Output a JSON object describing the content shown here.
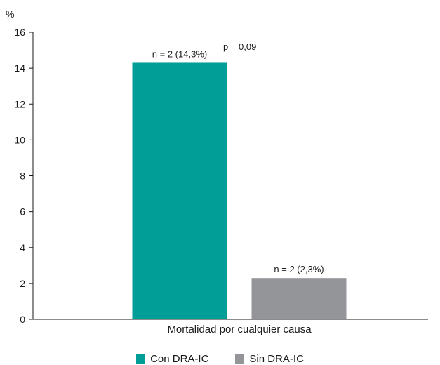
{
  "chart_data": {
    "type": "bar",
    "categories": [
      "Mortalidad por cualquier causa"
    ],
    "series": [
      {
        "name": "Con DRA-IC",
        "values": [
          14.3
        ],
        "color": "#009e96",
        "label": "n = 2 (14,3%)"
      },
      {
        "name": "Sin DRA-IC",
        "values": [
          2.3
        ],
        "color": "#939598",
        "label": "n = 2 (2,3%)"
      }
    ],
    "ylabel": "%",
    "xlabel": "",
    "ylim": [
      0,
      16
    ],
    "yticks": [
      "0",
      "2",
      "4",
      "6",
      "8",
      "10",
      "12",
      "14",
      "16"
    ],
    "annotation": "p = 0,09",
    "grid": false,
    "legend_position": "bottom"
  }
}
